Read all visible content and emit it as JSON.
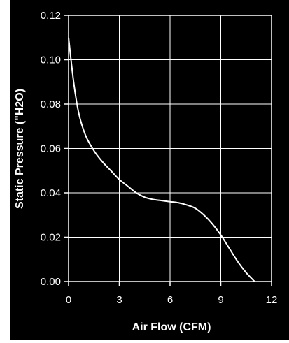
{
  "chart_data": {
    "type": "line",
    "title": "",
    "xlabel": "Air Flow (CFM)",
    "ylabel": "Static Pressure (\"H2O)",
    "xlim": [
      0,
      12
    ],
    "ylim": [
      0,
      0.12
    ],
    "x_ticks": [
      "0",
      "3",
      "6",
      "9",
      "12"
    ],
    "y_ticks": [
      "0.00",
      "0.02",
      "0.04",
      "0.06",
      "0.08",
      "0.10",
      "0.12"
    ],
    "grid": true,
    "background_color": "#000000",
    "line_color": "#ffffff",
    "series": [
      {
        "x": [
          0,
          0.3,
          0.6,
          1.0,
          1.5,
          2.0,
          2.5,
          3.0,
          3.5,
          4.0,
          4.5,
          5.0,
          5.5,
          6.0,
          6.5,
          7.0,
          7.5,
          8.0,
          8.5,
          9.0,
          9.5,
          10.0,
          10.5,
          11.0
        ],
        "y": [
          0.11,
          0.09,
          0.076,
          0.066,
          0.059,
          0.054,
          0.05,
          0.046,
          0.043,
          0.04,
          0.038,
          0.037,
          0.0365,
          0.036,
          0.0355,
          0.0345,
          0.033,
          0.03,
          0.026,
          0.021,
          0.015,
          0.009,
          0.004,
          0.0
        ]
      }
    ]
  }
}
